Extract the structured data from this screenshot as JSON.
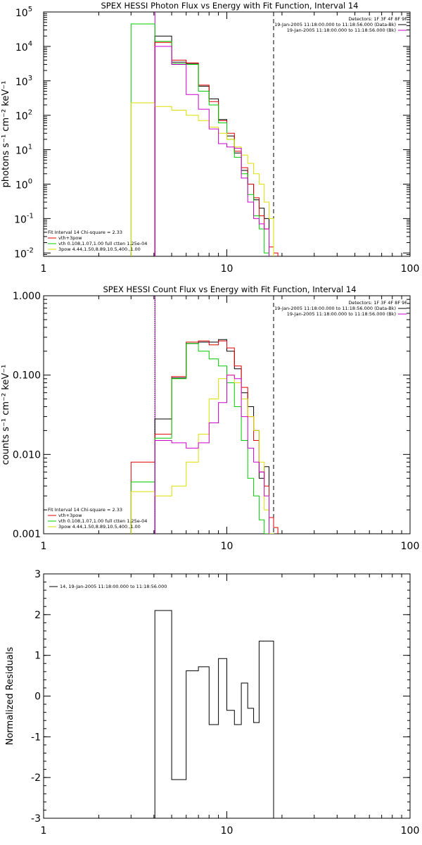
{
  "chart_data": [
    {
      "type": "step",
      "title": "SPEX HESSI Photon Flux vs Energy with Fit Function, Interval 14",
      "ylabel": "photons s⁻¹ cm⁻² keV⁻¹",
      "xlabel": "",
      "xscale": "log",
      "yscale": "log",
      "xlim": [
        1,
        100
      ],
      "ylim": [
        0.008,
        100000
      ],
      "xticks": [
        "1",
        "10",
        "100"
      ],
      "yticks": [
        {
          "base": "10",
          "exp": "5",
          "value": 100000
        },
        {
          "base": "10",
          "exp": "4",
          "value": 10000
        },
        {
          "base": "10",
          "exp": "3",
          "value": 1000
        },
        {
          "base": "10",
          "exp": "2",
          "value": 100
        },
        {
          "base": "10",
          "exp": "1",
          "value": 10
        },
        {
          "base": "10",
          "exp": "0",
          "value": 1
        },
        {
          "base": "10",
          "exp": "-1",
          "value": 0.1
        },
        {
          "base": "10",
          "exp": "-2",
          "value": 0.01
        }
      ],
      "vlines": [
        {
          "x": 4.05,
          "style": "solid",
          "color": "#cc00cc"
        },
        {
          "x": 18.0,
          "style": "dashed",
          "color": "#000000"
        }
      ],
      "info_lines": [
        "Detectors: 1F 3F 4F 8F 9F",
        "19-Jan-2005 11:18:00.000 to 11:18:56.000 (Data-Bk)",
        "19-Jan-2005 11:18:00.000 to 11:18:56.000 (Bk)"
      ],
      "legend": [
        "Fit Interval 14    Chi-square = 2.33",
        "vth+3pow",
        "vth 0.108,1.07,1.00  full ctten 1.25e-04",
        "3pow 4.44,1.50,8.89,10.5,400.,1.00"
      ],
      "edges": [
        3.0,
        4.05,
        5.0,
        6.0,
        7.0,
        8.0,
        9.0,
        10.0,
        11.0,
        12.0,
        13.0,
        14.0,
        15.0,
        16.0,
        17.0,
        18.0,
        19.0,
        20.0
      ],
      "series": [
        {
          "name": "Data-Bk",
          "color": "#000000",
          "values": [
            null,
            20000,
            3500,
            3200,
            700,
            300,
            75,
            25,
            8,
            2.5,
            1.0,
            0.35,
            0.2,
            0.1,
            null,
            null,
            null
          ]
        },
        {
          "name": "vth+3pow",
          "color": "#dd0000",
          "values": [
            null,
            13000,
            4000,
            3300,
            750,
            250,
            70,
            30,
            9,
            3.0,
            1.0,
            0.4,
            0.12,
            0.05,
            0.015,
            0.01,
            null
          ]
        },
        {
          "name": "vth",
          "color": "#00cc00",
          "values": [
            45000,
            14000,
            3100,
            3000,
            500,
            200,
            60,
            20,
            6,
            2.0,
            0.5,
            0.12,
            0.05,
            0.01,
            null,
            null,
            null
          ]
        },
        {
          "name": "3pow",
          "color": "#dddd00",
          "values": [
            230,
            180,
            140,
            100,
            70,
            45,
            30,
            20,
            12,
            7,
            4,
            2,
            1,
            0.3,
            0.1,
            null,
            null
          ]
        },
        {
          "name": "Bk",
          "color": "#cc00cc",
          "values": [
            null,
            10000,
            3000,
            400,
            150,
            40,
            15,
            12,
            11,
            1.5,
            0.3,
            0.1,
            0.07,
            0.05,
            null,
            null,
            null
          ]
        }
      ]
    },
    {
      "type": "step",
      "title": "SPEX HESSI Count Flux vs Energy with Fit Function, Interval 14",
      "ylabel": "counts s⁻¹ cm⁻² keV⁻¹",
      "xlabel": "",
      "xscale": "log",
      "yscale": "log",
      "xlim": [
        1,
        100
      ],
      "ylim": [
        0.001,
        1.0
      ],
      "xticks": [
        "1",
        "10",
        "100"
      ],
      "yticks": [
        {
          "label": "1.000",
          "value": 1.0
        },
        {
          "label": "0.100",
          "value": 0.1
        },
        {
          "label": "0.010",
          "value": 0.01
        },
        {
          "label": "0.001",
          "value": 0.001
        }
      ],
      "vlines": [
        {
          "x": 4.05,
          "style": "solid",
          "color": "#cc00cc"
        },
        {
          "x": 4.05,
          "style": "dotted",
          "color": "#000000"
        },
        {
          "x": 18.0,
          "style": "dashed",
          "color": "#000000"
        }
      ],
      "info_lines": [
        "Detectors: 1F 3F 4F 8F 9F",
        "19-Jan-2005 11:18:00.000 to 11:18:56.000 (Data-Bk)",
        "19-Jan-2005 11:18:00.000 to 11:18:56.000 (Bk)"
      ],
      "legend": [
        "Fit Interval 14    Chi-square = 2.33",
        "vth+3pow",
        "vth 0.108,1.07,1.00  full ctten 1.25e-04",
        "3pow 4.44,1.50,8.89,10.5,400.,1.00"
      ],
      "edges": [
        3.0,
        4.05,
        5.0,
        6.0,
        7.0,
        8.0,
        9.0,
        10.0,
        11.0,
        12.0,
        13.0,
        14.0,
        15.0,
        16.0,
        17.0,
        18.0,
        19.0,
        20.0
      ],
      "series": [
        {
          "name": "Data-Bk",
          "color": "#000000",
          "values": [
            null,
            0.028,
            0.092,
            0.25,
            0.26,
            0.26,
            0.28,
            0.2,
            0.12,
            0.06,
            0.04,
            0.02,
            0.005,
            0.007,
            null,
            null,
            null
          ]
        },
        {
          "name": "vth+3pow",
          "color": "#dd0000",
          "values": [
            0.008,
            0.018,
            0.096,
            0.26,
            0.27,
            0.24,
            0.27,
            0.22,
            0.13,
            0.07,
            0.03,
            0.015,
            0.006,
            0.004,
            0.0016,
            0.0012,
            null
          ]
        },
        {
          "name": "vth",
          "color": "#00cc00",
          "values": [
            0.0045,
            0.016,
            0.09,
            0.25,
            0.2,
            0.16,
            0.13,
            0.08,
            0.04,
            0.015,
            0.005,
            0.003,
            0.0015,
            0.001,
            null,
            null,
            null
          ]
        },
        {
          "name": "3pow",
          "color": "#dddd00",
          "values": [
            0.0034,
            0.003,
            0.004,
            0.008,
            0.018,
            0.05,
            0.09,
            0.1,
            0.08,
            0.05,
            0.03,
            0.02,
            0.008,
            0.002,
            0.001,
            null,
            null
          ]
        },
        {
          "name": "Bk",
          "color": "#cc00cc",
          "values": [
            null,
            0.015,
            0.014,
            0.012,
            0.014,
            0.025,
            0.045,
            0.1,
            0.09,
            0.03,
            0.012,
            0.008,
            0.006,
            0.003,
            null,
            null,
            null
          ]
        }
      ]
    },
    {
      "type": "step",
      "title": "",
      "ylabel": "Normalized Residuals",
      "xlabel": "",
      "xscale": "log",
      "yscale": "linear",
      "xlim": [
        1,
        100
      ],
      "ylim": [
        -3,
        3
      ],
      "xticks": [
        "1",
        "10",
        "100"
      ],
      "yticks": [
        {
          "label": "3",
          "value": 3
        },
        {
          "label": "2",
          "value": 2
        },
        {
          "label": "1",
          "value": 1
        },
        {
          "label": "0",
          "value": 0
        },
        {
          "label": "-1",
          "value": -1
        },
        {
          "label": "-2",
          "value": -2
        },
        {
          "label": "-3",
          "value": -3
        }
      ],
      "legend": [
        "14, 19-Jan-2005 11:18:00.000 to 11:18:56.000"
      ],
      "edges": [
        4.05,
        5.0,
        6.0,
        7.0,
        8.0,
        9.0,
        10.0,
        11.0,
        12.0,
        13.0,
        14.0,
        15.0,
        16.0,
        17.0,
        18.0
      ],
      "values": [
        2.1,
        -2.05,
        0.62,
        0.72,
        -0.7,
        0.92,
        -0.35,
        -0.7,
        0.32,
        -0.3,
        -0.65,
        1.35,
        1.35,
        1.35
      ]
    }
  ]
}
